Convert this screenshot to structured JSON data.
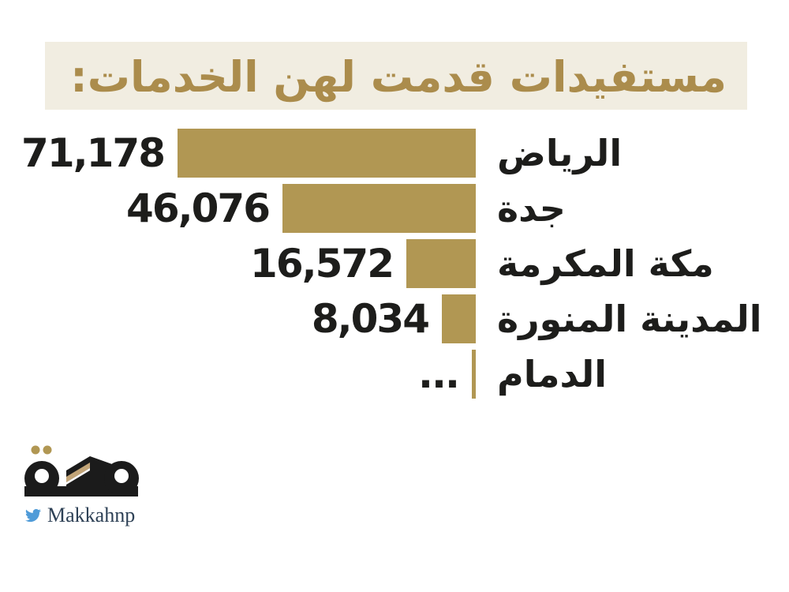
{
  "header": {
    "title": "مستفيدات قدمت لهن الخدمات:",
    "band_color": "#f1ede1",
    "title_color": "#ab8c4c"
  },
  "chart_data": {
    "type": "bar",
    "orientation": "horizontal-right-aligned",
    "title": "مستفيدات قدمت لهن الخدمات:",
    "bar_color": "#b19753",
    "text_color": "#1d1d1b",
    "grid": false,
    "legend": "none",
    "max_value": 71178,
    "categories": [
      "الرياض",
      "جدة",
      "مكة المكرمة",
      "المدينة المنورة",
      "الدمام"
    ],
    "values": [
      71178,
      46076,
      16572,
      8034,
      null
    ],
    "rows": [
      {
        "city": "الرياض",
        "value": 71178,
        "value_label": "71,178"
      },
      {
        "city": "جدة",
        "value": 46076,
        "value_label": "46,076"
      },
      {
        "city": "مكة المكرمة",
        "value": 16572,
        "value_label": "16,572"
      },
      {
        "city": "المدينة المنورة",
        "value": 8034,
        "value_label": "8,034"
      },
      {
        "city": "الدمام",
        "value": null,
        "value_label": "..."
      }
    ]
  },
  "footer": {
    "logo_text": "مكة",
    "twitter_handle": "Makkahnp",
    "twitter_blue": "#4f9bd8",
    "handle_color": "#2e4156",
    "logo_black": "#1b1b1b",
    "logo_gold": "#b19753",
    "logo_tan": "#c2a477"
  }
}
